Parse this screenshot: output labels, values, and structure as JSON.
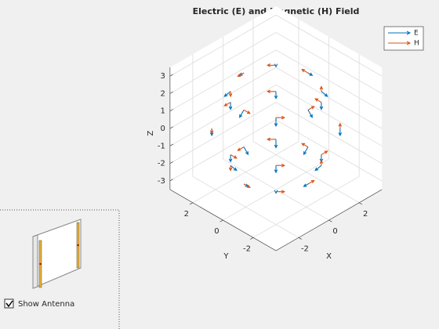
{
  "chart_data": {
    "type": "quiver3",
    "title": "Electric (E) and Magnetic (H) Field",
    "xlabel": "X",
    "ylabel": "Y",
    "zlabel": "Z",
    "xlim": [
      -3.5,
      3.5
    ],
    "ylim": [
      -3.5,
      3.5
    ],
    "zlim": [
      -3.5,
      3.5
    ],
    "xticks": [
      -2,
      0,
      2
    ],
    "yticks": [
      -2,
      0,
      2
    ],
    "zticks": [
      -3,
      -2,
      -1,
      0,
      1,
      2,
      3
    ],
    "grid": true,
    "legend": "northeast",
    "x": [
      2.12,
      1.5,
      0,
      -1.5,
      -2.12,
      -1.5,
      0,
      1.5,
      3,
      2.12,
      0,
      -2.12,
      -3,
      -2.12,
      0,
      2.12,
      2.12,
      1.5,
      0,
      -1.5,
      -2.12,
      -1.5,
      0,
      1.5
    ],
    "y": [
      0,
      1.5,
      2.12,
      1.5,
      0,
      -1.5,
      -2.12,
      -1.5,
      0,
      2.12,
      3,
      2.12,
      0,
      -2.12,
      -3,
      -2.12,
      0,
      1.5,
      2.12,
      1.5,
      0,
      -1.5,
      -2.12,
      -1.5
    ],
    "z": [
      2.12,
      2.12,
      2.12,
      2.12,
      2.12,
      2.12,
      2.12,
      2.12,
      0,
      0,
      0,
      0,
      0,
      0,
      0,
      0,
      -2.12,
      -2.12,
      -2.12,
      -2.12,
      -2.12,
      -2.12,
      -2.12,
      -2.12
    ],
    "series": [
      {
        "name": "E",
        "color": "#0072bd",
        "u": [
          0.28,
          0.2,
          0,
          -0.2,
          -0.28,
          -0.2,
          0,
          0.2,
          0,
          0,
          0,
          0,
          0,
          0,
          0,
          0,
          -0.28,
          -0.2,
          0,
          0.2,
          0.28,
          0.2,
          0,
          -0.2
        ],
        "v": [
          0,
          0.2,
          0.28,
          0.2,
          0,
          -0.2,
          -0.28,
          -0.2,
          0,
          0,
          0,
          0,
          0,
          0,
          0,
          0,
          0,
          -0.2,
          -0.28,
          -0.2,
          0,
          0.2,
          0.28,
          0.2
        ],
        "w": [
          -0.28,
          -0.28,
          -0.28,
          -0.28,
          -0.28,
          -0.28,
          -0.28,
          -0.28,
          -0.4,
          -0.4,
          -0.4,
          -0.4,
          -0.4,
          -0.4,
          -0.4,
          -0.4,
          -0.28,
          -0.28,
          -0.28,
          -0.28,
          -0.28,
          -0.28,
          -0.28,
          -0.28
        ]
      },
      {
        "name": "H",
        "color": "#d95319",
        "u": [
          0,
          -0.28,
          -0.4,
          -0.28,
          0,
          0.28,
          0.4,
          0.28,
          0,
          -0.28,
          -0.4,
          -0.28,
          0,
          0.28,
          0.4,
          0.28,
          0,
          -0.28,
          -0.4,
          -0.28,
          0,
          0.28,
          0.4,
          0.28
        ],
        "v": [
          0.4,
          0.28,
          0,
          -0.28,
          -0.4,
          -0.28,
          0,
          0.28,
          0.4,
          0.28,
          0,
          -0.28,
          -0.4,
          -0.28,
          0,
          0.28,
          0.4,
          0.28,
          0,
          -0.28,
          -0.4,
          -0.28,
          0,
          0.28
        ],
        "w": [
          0,
          0,
          0,
          0,
          0,
          0,
          0,
          0,
          0,
          0,
          0,
          0,
          0,
          0,
          0,
          0,
          0,
          0,
          0,
          0,
          0,
          0,
          0,
          0
        ]
      }
    ]
  },
  "panel": {
    "checkbox_label": "Show Antenna",
    "checked": true
  }
}
